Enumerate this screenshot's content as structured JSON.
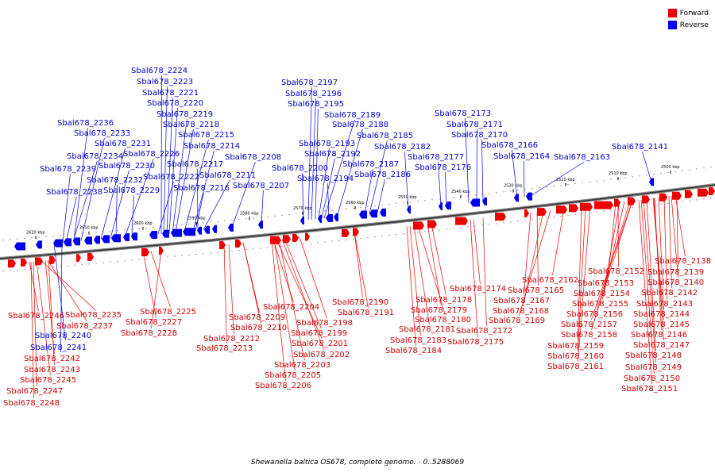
{
  "legend": {
    "forward_label": "Forward",
    "forward_color": "#ee0000",
    "reverse_label": "Reverse",
    "reverse_color": "#0000ee"
  },
  "caption": "Shewanella baltica OS678, complete genome. - 0..5288069",
  "ticks": [
    "2620 kbp",
    "2610 kbp",
    "2600 kbp",
    "2590 kbp",
    "2580 kbp",
    "2570 kbp",
    "2560 kbp",
    "2550 kbp",
    "2540 kbp",
    "2530 kbp",
    "2520 kbp",
    "2510 kbp",
    "2500 kbp"
  ],
  "reverse_genes": [
    "Sbal678_2224",
    "Sbal678_2223",
    "Sbal678_2221",
    "Sbal678_2220",
    "Sbal678_2219",
    "Sbal678_2218",
    "Sbal678_2236",
    "Sbal678_2233",
    "Sbal678_2215",
    "Sbal678_2231",
    "Sbal678_2214",
    "Sbal678_2226",
    "Sbal678_2234",
    "Sbal678_2217",
    "Sbal678_2230",
    "Sbal678_2239",
    "Sbal678_2222",
    "Sbal678_2211",
    "Sbal678_2232",
    "Sbal678_2216",
    "Sbal678_2229",
    "Sbal678_2238",
    "Sbal678_2208",
    "Sbal678_2207",
    "Sbal678_2197",
    "Sbal678_2196",
    "Sbal678_2195",
    "Sbal678_2189",
    "Sbal678_2188",
    "Sbal678_2185",
    "Sbal678_2193",
    "Sbal678_2192",
    "Sbal678_2200",
    "Sbal678_2194",
    "Sbal678_2187",
    "Sbal678_2186",
    "Sbal678_2182",
    "Sbal678_2173",
    "Sbal678_2171",
    "Sbal678_2170",
    "Sbal678_2177",
    "Sbal678_2176",
    "Sbal678_2166",
    "Sbal678_2164",
    "Sbal678_2163",
    "Sbal678_2141",
    "Sbal678_2240",
    "Sbal678_2241"
  ],
  "forward_genes": [
    "Sbal678_2246",
    "Sbal678_2235",
    "Sbal678_2237",
    "Sbal678_2242",
    "Sbal678_2243",
    "Sbal678_2245",
    "Sbal678_2247",
    "Sbal678_2248",
    "Sbal678_2225",
    "Sbal678_2227",
    "Sbal678_2228",
    "Sbal678_2204",
    "Sbal678_2209",
    "Sbal678_2210",
    "Sbal678_2212",
    "Sbal678_2213",
    "Sbal678_2198",
    "Sbal678_2199",
    "Sbal678_2201",
    "Sbal678_2202",
    "Sbal678_2203",
    "Sbal678_2205",
    "Sbal678_2206",
    "Sbal678_2190",
    "Sbal678_2191",
    "Sbal678_2174",
    "Sbal678_2178",
    "Sbal678_2179",
    "Sbal678_2180",
    "Sbal678_2181",
    "Sbal678_2183",
    "Sbal678_2184",
    "Sbal678_2172",
    "Sbal678_2175",
    "Sbal678_2162",
    "Sbal678_2165",
    "Sbal678_2167",
    "Sbal678_2168",
    "Sbal678_2169",
    "Sbal678_2152",
    "Sbal678_2153",
    "Sbal678_2154",
    "Sbal678_2155",
    "Sbal678_2156",
    "Sbal678_2157",
    "Sbal678_2158",
    "Sbal678_2159",
    "Sbal678_2160",
    "Sbal678_2161",
    "Sbal678_2138",
    "Sbal678_2139",
    "Sbal678_2140",
    "Sbal678_2142",
    "Sbal678_2143",
    "Sbal678_2144",
    "Sbal678_2145",
    "Sbal678_2146",
    "Sbal678_2147",
    "Sbal678_2148",
    "Sbal678_2149",
    "Sbal678_2150",
    "Sbal678_2151"
  ]
}
